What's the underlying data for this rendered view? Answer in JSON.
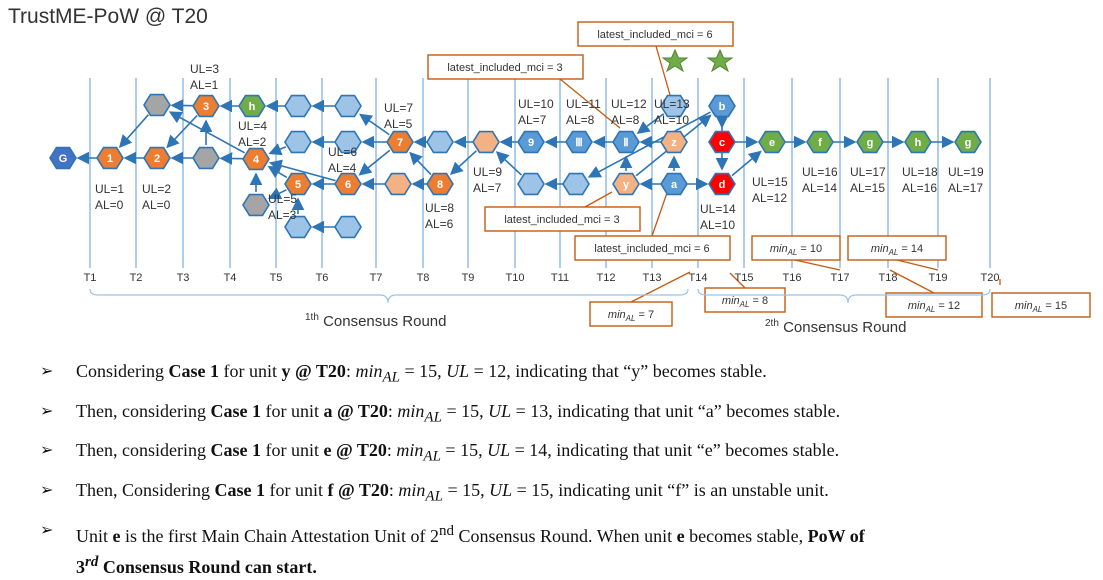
{
  "title": "TrustME-PoW @ T20",
  "timeline": {
    "labels": [
      "T1",
      "T2",
      "T3",
      "T4",
      "T5",
      "T6",
      "T7",
      "T8",
      "T9",
      "T10",
      "T11",
      "T12",
      "T13",
      "T14",
      "T15",
      "T16",
      "T17",
      "T18",
      "T19",
      "T20"
    ]
  },
  "rounds": {
    "r1": {
      "sup": "1th",
      "rest": " Consensus Round"
    },
    "r2": {
      "sup": "2th",
      "rest": " Consensus Round"
    }
  },
  "nodes": [
    {
      "label": "G",
      "color": "#4472c4"
    },
    {
      "label": "1",
      "color": "#ed7d31"
    },
    {
      "label": "2",
      "color": "#ed7d31"
    },
    {
      "label": "",
      "color": "#a5a5a5"
    },
    {
      "label": "3",
      "color": "#ed7d31"
    },
    {
      "label": "",
      "color": "#a5a5a5"
    },
    {
      "label": "4",
      "color": "#ed7d31"
    },
    {
      "label": "",
      "color": "#a5a5a5"
    },
    {
      "label": "5",
      "color": "#ed7d31"
    },
    {
      "label": "6",
      "color": "#ed7d31"
    },
    {
      "label": "7",
      "color": "#ed7d31"
    },
    {
      "label": "8",
      "color": "#ed7d31"
    },
    {
      "label": "",
      "color": "#f4b183"
    },
    {
      "label": "",
      "color": "#f4b183"
    },
    {
      "label": "9",
      "color": "#5b9bd5"
    },
    {
      "label": "Ⅲ",
      "color": "#5b9bd5"
    },
    {
      "label": "Ⅱ",
      "color": "#5b9bd5"
    },
    {
      "label": "y",
      "color": "#f4b183"
    },
    {
      "label": "z",
      "color": "#f4b183"
    },
    {
      "label": "a",
      "color": "#5b9bd5"
    },
    {
      "label": "b",
      "color": "#5b9bd5"
    },
    {
      "label": "c",
      "color": "#ff0000"
    },
    {
      "label": "d",
      "color": "#ff0000"
    },
    {
      "label": "e",
      "color": "#70ad47"
    },
    {
      "label": "f",
      "color": "#70ad47"
    },
    {
      "label": "g",
      "color": "#70ad47"
    },
    {
      "label": "h",
      "color": "#70ad47"
    },
    {
      "label": "g",
      "color": "#70ad47"
    },
    {
      "label": "h",
      "color": "#70ad47"
    },
    {
      "label": "",
      "color": "#9dc3e6"
    },
    {
      "label": "",
      "color": "#9dc3e6"
    },
    {
      "label": "",
      "color": "#9dc3e6"
    },
    {
      "label": "",
      "color": "#9dc3e6"
    },
    {
      "label": "",
      "color": "#9dc3e6"
    },
    {
      "label": "",
      "color": "#9dc3e6"
    },
    {
      "label": "",
      "color": "#9dc3e6"
    },
    {
      "label": "",
      "color": "#9dc3e6"
    },
    {
      "label": "",
      "color": "#9dc3e6"
    },
    {
      "label": "",
      "color": "#9dc3e6"
    },
    {
      "label": "",
      "color": "#9dc3e6"
    }
  ],
  "ulal": [
    {
      "ul": "UL=1",
      "al": "AL=0"
    },
    {
      "ul": "UL=2",
      "al": "AL=0"
    },
    {
      "ul": "UL=3",
      "al": "AL=1"
    },
    {
      "ul": "UL=4",
      "al": "AL=2"
    },
    {
      "ul": "UL=5",
      "al": "AL=3"
    },
    {
      "ul": "UL=6",
      "al": "AL=4"
    },
    {
      "ul": "UL=7",
      "al": "AL=5"
    },
    {
      "ul": "UL=8",
      "al": "AL=6"
    },
    {
      "ul": "UL=9",
      "al": "AL=7"
    },
    {
      "ul": "UL=10",
      "al": "AL=7"
    },
    {
      "ul": "UL=11",
      "al": "AL=8"
    },
    {
      "ul": "UL=12",
      "al": "AL=8"
    },
    {
      "ul": "UL=13",
      "al": "AL=10"
    },
    {
      "ul": "UL=14",
      "al": "AL=10"
    },
    {
      "ul": "UL=15",
      "al": "AL=12"
    },
    {
      "ul": "UL=16",
      "al": "AL=14"
    },
    {
      "ul": "UL=17",
      "al": "AL=15"
    },
    {
      "ul": "UL=18",
      "al": "AL=16"
    },
    {
      "ul": "UL=19",
      "al": "AL=17"
    }
  ],
  "mci_boxes": [
    "latest_included_mci = 6",
    "latest_included_mci = 3",
    "latest_included_mci = 3",
    "latest_included_mci = 6"
  ],
  "minal_boxes": [
    {
      "base": "min",
      "sub": "AL",
      "value": " = 10"
    },
    {
      "base": "min",
      "sub": "AL",
      "value": " = 14"
    },
    {
      "base": "min",
      "sub": "AL",
      "value": " = 8"
    },
    {
      "base": "min",
      "sub": "AL",
      "value": " = 7"
    },
    {
      "base": "min",
      "sub": "AL",
      "value": " = 12"
    },
    {
      "base": "min",
      "sub": "AL",
      "value": " = 15"
    }
  ],
  "bullets": [
    {
      "a": "Considering ",
      "b": "Case 1",
      "c": " for unit ",
      "d": "y @ T20",
      "e": ": ",
      "m1": "min",
      "m1s": "AL",
      "f": " = 15, ",
      "m2": "UL",
      "g": " = 12, indicating that “y” becomes stable."
    },
    {
      "a": "Then, considering ",
      "b": "Case 1",
      "c": " for unit ",
      "d": "a @ T20",
      "e": ": ",
      "m1": "min",
      "m1s": "AL",
      "f": " = 15, ",
      "m2": "UL",
      "g": " = 13,  indicating that unit “a” becomes stable."
    },
    {
      "a": "Then, considering ",
      "b": "Case 1",
      "c": " for unit ",
      "d": "e @ T20",
      "e": ": ",
      "m1": "min",
      "m1s": "AL",
      "f": " = 15, ",
      "m2": "UL",
      "g": " = 14,  indicating that unit “e” becomes stable."
    },
    {
      "a": "Then, Considering ",
      "b": "Case 1",
      "c": " for unit ",
      "d": "f @ T20",
      "e": ": ",
      "m1": "min",
      "m1s": "AL",
      "f": " = 15, ",
      "m2": "UL",
      "g": " = 15, indicating unit “f” is an unstable unit."
    }
  ],
  "last_bullet": {
    "p1": "Unit ",
    "p2": "e",
    "p3": " is the first Main Chain Attestation Unit of 2",
    "p3sup": "nd",
    "p4": " Consensus Round. When unit ",
    "p5": "e",
    "p6": " becomes stable, ",
    "p7": "PoW of",
    "p8": "3",
    "p8sup": "rd",
    "p9": " Consensus Round can start."
  },
  "colors": {
    "orange": "#ed7d31",
    "orange_light": "#f4b183",
    "blue": "#5b9bd5",
    "blue_light": "#9dc3e6",
    "dark_blue": "#4472c4",
    "gray": "#a5a5a5",
    "red": "#ff0000",
    "green": "#70ad47",
    "box_border": "#c55a11",
    "arrow": "#2e75b6",
    "star": "#70ad47"
  }
}
